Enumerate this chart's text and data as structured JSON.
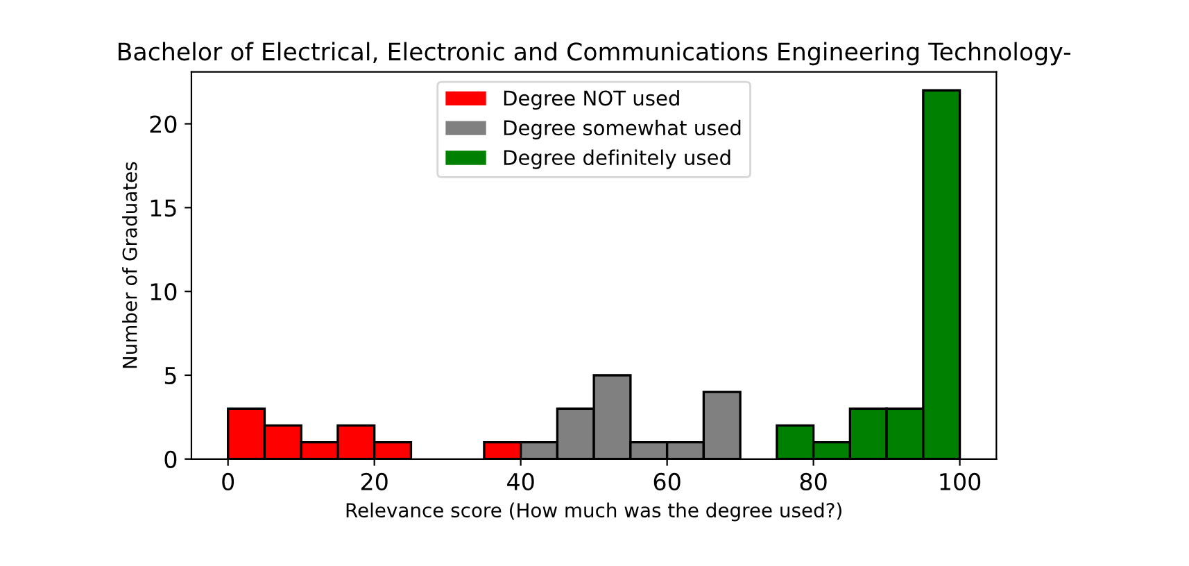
{
  "chart_data": {
    "type": "histogram",
    "title": "Bachelor of Electrical, Electronic and Communications Engineering Technology-",
    "xlabel": "Relevance score (How much was the degree used?)",
    "ylabel": "Number of Graduates",
    "bins": [
      0,
      5,
      10,
      15,
      20,
      25,
      30,
      35,
      40,
      45,
      50,
      55,
      60,
      65,
      70,
      75,
      80,
      85,
      90,
      95,
      100
    ],
    "series": [
      {
        "name": "Degree NOT used",
        "color": "#ff0000",
        "values": [
          3,
          2,
          1,
          2,
          1,
          null,
          null,
          1,
          null,
          null,
          null,
          null,
          null,
          null,
          null,
          null,
          null,
          null,
          null,
          null
        ]
      },
      {
        "name": "Degree somewhat used",
        "color": "#808080",
        "values": [
          null,
          null,
          null,
          null,
          null,
          null,
          null,
          null,
          1,
          3,
          5,
          1,
          1,
          4,
          null,
          null,
          null,
          null,
          null,
          null
        ]
      },
      {
        "name": "Degree definitely used",
        "color": "#008000",
        "values": [
          null,
          null,
          null,
          null,
          null,
          null,
          null,
          null,
          null,
          null,
          null,
          null,
          null,
          null,
          null,
          2,
          1,
          3,
          3,
          22
        ]
      }
    ],
    "xlim": [
      -5,
      105
    ],
    "ylim": [
      0,
      23.1
    ],
    "xticks": [
      0,
      20,
      40,
      60,
      80,
      100
    ],
    "yticks": [
      0,
      5,
      10,
      15,
      20
    ],
    "legend": "top center",
    "grid": false
  }
}
